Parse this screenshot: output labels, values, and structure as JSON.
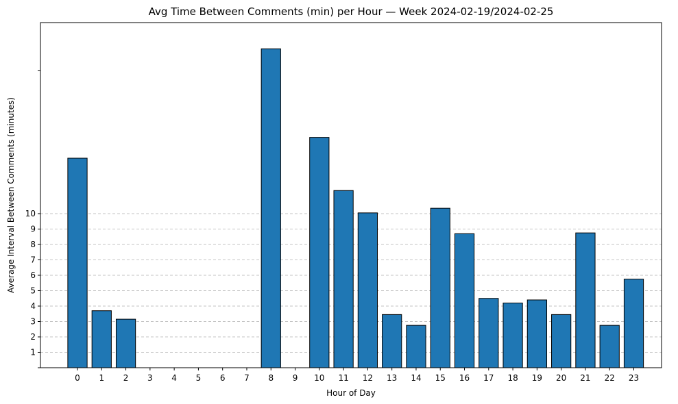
{
  "chart_data": {
    "type": "bar",
    "title": "Avg Time Between Comments (min) per Hour — Week 2024-02-19/2024-02-25",
    "xlabel": "Hour of Day",
    "ylabel": "Average Interval Between Comments (minutes)",
    "categories": [
      "0",
      "1",
      "2",
      "3",
      "4",
      "5",
      "6",
      "7",
      "8",
      "9",
      "10",
      "11",
      "12",
      "13",
      "14",
      "15",
      "16",
      "17",
      "18",
      "19",
      "20",
      "21",
      "22",
      "23"
    ],
    "values": [
      13.6,
      3.7,
      3.15,
      0,
      0,
      0,
      0,
      0,
      20.7,
      0,
      14.95,
      11.5,
      10.05,
      3.45,
      2.75,
      10.35,
      8.7,
      4.5,
      4.2,
      4.4,
      3.45,
      8.75,
      2.75,
      5.75
    ],
    "ylim": [
      0,
      22.4
    ],
    "yticks": [
      "1",
      "2",
      "3",
      "4",
      "5",
      "6",
      "7",
      "8",
      "9",
      "10"
    ],
    "grid": true,
    "colors": {
      "bar": "#1f77b4",
      "edge": "#000000",
      "grid": "#b0b0b0"
    }
  }
}
